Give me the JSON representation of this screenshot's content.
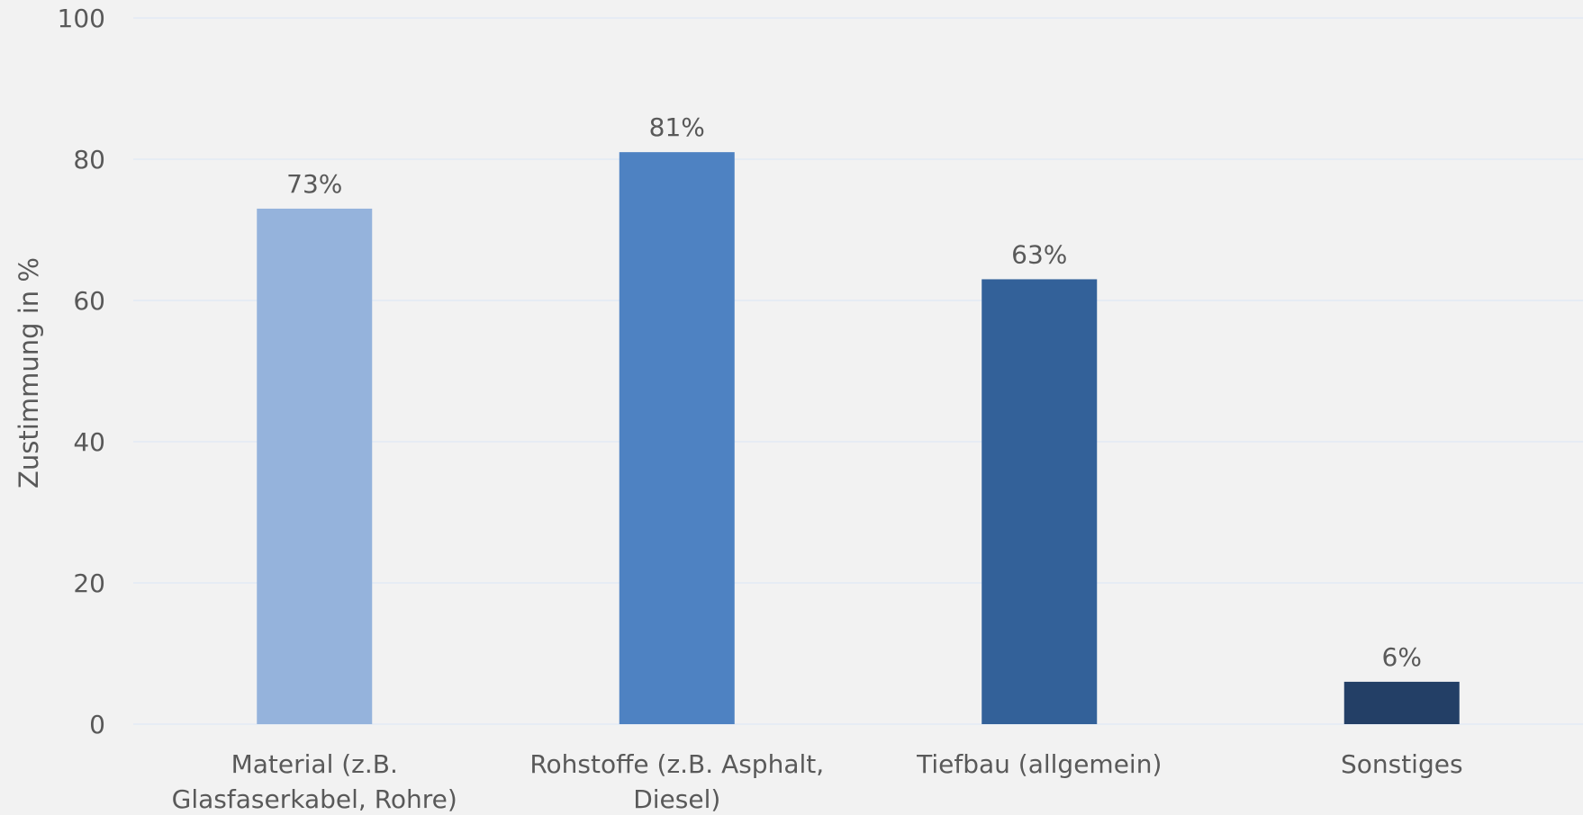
{
  "chart_data": {
    "type": "bar",
    "categories": [
      [
        "Material (z.B.",
        "Glasfaserkabel, Rohre)"
      ],
      [
        "Rohstoffe (z.B. Asphalt,",
        "Diesel)"
      ],
      [
        "Tiefbau (allgemein)"
      ],
      [
        "Sonstiges"
      ]
    ],
    "values": [
      73,
      81,
      63,
      6
    ],
    "data_labels": [
      "73%",
      "81%",
      "63%",
      "6%"
    ],
    "bar_colors": [
      "#95b3dc",
      "#4e82c2",
      "#336199",
      "#233f66"
    ],
    "ylabel": "Zustimmung in %",
    "ylim": [
      0,
      100
    ],
    "yticks": [
      0,
      20,
      40,
      60,
      80,
      100
    ],
    "grid": true,
    "legend": "none"
  }
}
